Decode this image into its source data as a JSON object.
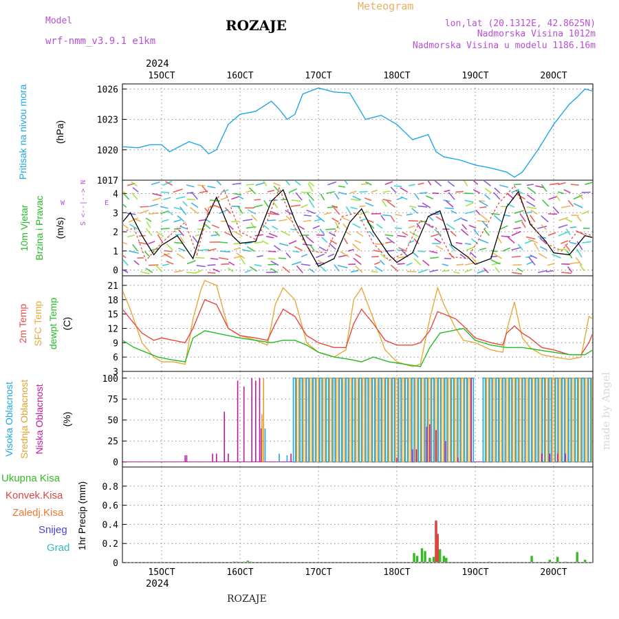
{
  "header": {
    "model_label": "Model",
    "model_name": "wrf-nmm_v3.9.1 e1km",
    "station_title": "ROZAJE",
    "meteogram_label": "Meteogram",
    "lonlat": "lon,lat (20.1312E, 42.8625N)",
    "elevation": "Nadmorska Visina 1012m",
    "model_elevation": "Nadmorska Visina u modelu 1186.16m",
    "footer_title": "ROZAJE",
    "watermark": "made by Angel"
  },
  "colors": {
    "pressure": "#1ea6e6",
    "temp2m": "#e8483c",
    "sfc": "#e8a838",
    "dewpt": "#22bb22",
    "high_cloud": "#1ea6e6",
    "mid_cloud": "#e0a030",
    "low_cloud": "#c0189c",
    "total_precip": "#33bb22",
    "conv_precip": "#dd4444",
    "header_purple": "#b84ed8",
    "header_orange": "#e8b060"
  },
  "time_axis": {
    "year": "2024",
    "start_day": 14.5,
    "end_day": 20.5,
    "ticks": [
      {
        "day": 15,
        "label": "15OCT"
      },
      {
        "day": 16,
        "label": "16OCT"
      },
      {
        "day": 17,
        "label": "17OCT"
      },
      {
        "day": 18,
        "label": "18OCT"
      },
      {
        "day": 19,
        "label": "19OCT"
      },
      {
        "day": 20,
        "label": "20OCT"
      }
    ]
  },
  "chart_data": [
    {
      "type": "line",
      "name": "pressure",
      "ylabel_lines": [
        {
          "text": "Pritisak na nivou mora",
          "color": "#1ea6e6"
        }
      ],
      "unit": "(hPa)",
      "ylim": [
        1017,
        1026.5
      ],
      "yticks": [
        1017,
        1020,
        1023,
        1026
      ],
      "grid": true,
      "series": [
        {
          "color": "#1ea6e6",
          "x": [
            14.5,
            14.7,
            14.85,
            15.0,
            15.1,
            15.2,
            15.35,
            15.5,
            15.6,
            15.7,
            15.85,
            16.0,
            16.2,
            16.4,
            16.5,
            16.6,
            16.7,
            16.8,
            17.0,
            17.2,
            17.4,
            17.6,
            17.8,
            18.0,
            18.2,
            18.4,
            18.5,
            18.6,
            18.8,
            19.0,
            19.2,
            19.4,
            19.5,
            19.6,
            19.8,
            20.0,
            20.2,
            20.3,
            20.4,
            20.5
          ],
          "y": [
            1020.3,
            1020.2,
            1020.5,
            1020.5,
            1019.8,
            1020.2,
            1020.8,
            1020.4,
            1019.6,
            1020.0,
            1022.5,
            1023.5,
            1023.8,
            1024.8,
            1024.0,
            1023.0,
            1023.5,
            1025.5,
            1026.1,
            1025.7,
            1025.6,
            1023.0,
            1023.4,
            1022.5,
            1021.0,
            1021.5,
            1019.8,
            1019.3,
            1019.0,
            1018.5,
            1018.2,
            1017.8,
            1017.3,
            1017.8,
            1020.0,
            1022.5,
            1024.5,
            1025.2,
            1026.0,
            1025.8
          ]
        }
      ]
    },
    {
      "type": "line",
      "name": "wind",
      "ylabel_lines": [
        {
          "text": "10m Vjetar",
          "color": "#22bb22"
        },
        {
          "text": "Brzina i Pravac",
          "color": "#22bb22"
        }
      ],
      "unit": "(m/s)",
      "compass_labels": [
        "W",
        "<--|-->",
        "E",
        "S",
        "N"
      ],
      "ylim": [
        -0.3,
        4.7
      ],
      "yticks": [
        0,
        1,
        2,
        3,
        4
      ],
      "grid": true,
      "series": [
        {
          "color": "#000000",
          "x": [
            14.5,
            14.6,
            14.75,
            14.9,
            15.0,
            15.2,
            15.4,
            15.55,
            15.7,
            15.9,
            16.0,
            16.2,
            16.4,
            16.55,
            16.7,
            16.85,
            17.0,
            17.2,
            17.4,
            17.55,
            17.7,
            17.9,
            18.0,
            18.2,
            18.4,
            18.55,
            18.7,
            18.9,
            19.0,
            19.2,
            19.4,
            19.55,
            19.7,
            19.9,
            20.0,
            20.2,
            20.4,
            20.5
          ],
          "y": [
            2.5,
            3.0,
            1.8,
            0.8,
            1.3,
            1.8,
            0.6,
            2.5,
            3.8,
            1.8,
            1.4,
            1.5,
            3.6,
            4.2,
            2.6,
            1.3,
            0.2,
            0.6,
            2.5,
            3.2,
            2.0,
            0.8,
            0.4,
            0.9,
            2.8,
            3.1,
            1.3,
            0.7,
            0.3,
            0.6,
            3.3,
            4.1,
            2.4,
            1.5,
            0.9,
            0.8,
            1.8,
            1.7
          ]
        },
        {
          "color": "#e8483c",
          "x": [
            14.5,
            14.65,
            14.8,
            14.95,
            15.1,
            15.3,
            15.45,
            15.6,
            15.8,
            16.0,
            16.2,
            16.35,
            16.5,
            16.7,
            16.9,
            17.1,
            17.3,
            17.5,
            17.7,
            17.9,
            18.1,
            18.3,
            18.5,
            18.7,
            18.9,
            19.1,
            19.3,
            19.5,
            19.7,
            19.9,
            20.1,
            20.3,
            20.5
          ],
          "y": [
            2.0,
            2.2,
            0.5,
            1.2,
            1.8,
            2.5,
            0.8,
            3.2,
            4.2,
            2.0,
            1.6,
            2.6,
            4.3,
            2.2,
            1.0,
            0.9,
            2.8,
            3.0,
            1.4,
            0.5,
            0.9,
            2.6,
            2.2,
            0.7,
            0.6,
            2.0,
            3.5,
            4.4,
            2.5,
            1.4,
            1.0,
            2.0,
            1.8
          ]
        }
      ]
    },
    {
      "type": "line",
      "name": "temperature",
      "ylabel_lines": [
        {
          "text": "2m Temp",
          "color": "#e8483c"
        },
        {
          "text": "SFC Temp",
          "color": "#e8a838"
        },
        {
          "text": "dewpt Temp",
          "color": "#22bb22"
        }
      ],
      "unit": "(C)",
      "ylim": [
        3,
        23
      ],
      "yticks": [
        3,
        6,
        9,
        12,
        15,
        18,
        21
      ],
      "grid": true,
      "series": [
        {
          "color": "#e8a838",
          "x": [
            14.5,
            14.6,
            14.75,
            14.9,
            15.0,
            15.15,
            15.3,
            15.4,
            15.5,
            15.55,
            15.7,
            15.85,
            16.0,
            16.2,
            16.35,
            16.45,
            16.55,
            16.7,
            16.85,
            17.0,
            17.2,
            17.35,
            17.45,
            17.55,
            17.7,
            17.85,
            18.0,
            18.2,
            18.3,
            18.42,
            18.52,
            18.6,
            18.75,
            18.85,
            19.0,
            19.2,
            19.35,
            19.4,
            19.5,
            19.6,
            19.7,
            19.85,
            20.0,
            20.2,
            20.35,
            20.45,
            20.5
          ],
          "y": [
            20.0,
            16.0,
            9.0,
            6.0,
            5.0,
            5.0,
            4.5,
            14.0,
            20.0,
            22.0,
            21.0,
            12.0,
            10.5,
            9.5,
            8.5,
            17.0,
            20.5,
            18.0,
            9.0,
            7.0,
            6.0,
            7.5,
            18.0,
            20.5,
            14.0,
            7.5,
            5.0,
            4.0,
            4.5,
            14.0,
            20.5,
            17.0,
            12.0,
            9.5,
            9.0,
            7.5,
            7.0,
            11.5,
            17.5,
            10.0,
            8.0,
            6.5,
            6.0,
            5.5,
            6.0,
            14.5,
            14.0
          ]
        },
        {
          "color": "#e8483c",
          "x": [
            14.5,
            14.6,
            14.75,
            14.9,
            15.0,
            15.15,
            15.3,
            15.4,
            15.5,
            15.55,
            15.7,
            15.85,
            16.0,
            16.2,
            16.35,
            16.45,
            16.55,
            16.7,
            16.85,
            17.0,
            17.2,
            17.35,
            17.45,
            17.55,
            17.7,
            17.85,
            18.0,
            18.2,
            18.3,
            18.42,
            18.52,
            18.6,
            18.75,
            18.85,
            19.0,
            19.2,
            19.35,
            19.4,
            19.5,
            19.6,
            19.7,
            19.85,
            20.0,
            20.2,
            20.35,
            20.45,
            20.5
          ],
          "y": [
            16.0,
            14.0,
            11.0,
            9.5,
            10.0,
            9.5,
            9.0,
            12.0,
            16.0,
            18.0,
            17.0,
            12.0,
            10.5,
            10.0,
            9.5,
            13.0,
            16.0,
            14.5,
            10.5,
            9.0,
            8.0,
            8.0,
            13.0,
            16.0,
            13.0,
            9.5,
            8.5,
            8.5,
            9.0,
            11.5,
            15.5,
            15.0,
            14.0,
            12.5,
            10.0,
            9.0,
            8.5,
            11.0,
            12.5,
            11.0,
            10.0,
            8.0,
            7.5,
            6.5,
            6.5,
            9.0,
            11.0
          ]
        },
        {
          "color": "#22bb22",
          "x": [
            14.5,
            14.65,
            14.8,
            14.95,
            15.1,
            15.3,
            15.4,
            15.55,
            15.7,
            15.85,
            16.0,
            16.2,
            16.4,
            16.55,
            16.7,
            16.85,
            17.0,
            17.2,
            17.4,
            17.55,
            17.7,
            17.9,
            18.1,
            18.3,
            18.42,
            18.55,
            18.7,
            18.85,
            19.0,
            19.2,
            19.4,
            19.6,
            19.8,
            20.0,
            20.2,
            20.4,
            20.5
          ],
          "y": [
            9.5,
            8.0,
            7.0,
            6.0,
            5.5,
            5.0,
            10.0,
            11.5,
            11.0,
            10.5,
            10.0,
            9.5,
            9.0,
            9.5,
            9.5,
            8.5,
            7.0,
            6.0,
            5.5,
            5.0,
            6.0,
            5.0,
            4.5,
            4.0,
            8.0,
            11.0,
            11.5,
            12.0,
            9.5,
            8.5,
            8.0,
            8.0,
            7.5,
            7.0,
            6.5,
            6.5,
            7.5
          ]
        }
      ]
    },
    {
      "type": "bar",
      "name": "cloud_cover",
      "ylabel_lines": [
        {
          "text": "Visoka Oblacnost",
          "color": "#1ea6e6"
        },
        {
          "text": "Srednja Oblacnost",
          "color": "#e0a030"
        },
        {
          "text": "Niska Oblacnost",
          "color": "#c0189c"
        }
      ],
      "unit": "(%)",
      "ylim": [
        0,
        100
      ],
      "yticks": [
        0,
        25,
        50,
        75,
        100
      ],
      "grid": true,
      "series": [
        {
          "name": "low",
          "color": "#c0189c",
          "x": [
            15.3,
            15.32,
            15.65,
            15.7,
            15.8,
            15.85,
            15.97,
            16.05,
            16.15,
            16.2,
            16.25,
            16.27,
            16.65,
            18.0,
            18.2,
            18.25,
            18.38,
            18.42,
            18.5,
            18.62,
            18.78,
            18.95,
            19.85,
            19.95,
            20.05,
            20.15
          ],
          "y": [
            8,
            8,
            10,
            10,
            60,
            10,
            97,
            90,
            100,
            97,
            100,
            40,
            10,
            5,
            15,
            15,
            42,
            45,
            38,
            25,
            5,
            100,
            10,
            10,
            10,
            10
          ]
        },
        {
          "name": "mid",
          "color": "#e0a030",
          "x": [
            16.28,
            16.3
          ],
          "y": [
            57,
            100
          ]
        },
        {
          "name": "high",
          "color": "#1ea6e6",
          "x": [
            16.32,
            16.5,
            16.6
          ],
          "y": [
            40,
            10,
            8
          ]
        }
      ],
      "dense_segments": [
        {
          "x_start": 16.68,
          "x_end": 18.98,
          "high": 100,
          "mid": 100
        },
        {
          "x_start": 19.1,
          "x_end": 20.5,
          "high": 100,
          "mid": 100
        }
      ]
    },
    {
      "type": "bar",
      "name": "precipitation",
      "ylabel_lines": [
        {
          "text": "1hr Precip (mm)",
          "color": "#000000"
        }
      ],
      "legend": [
        {
          "text": "Ukupna Kisa",
          "color": "#33bb22"
        },
        {
          "text": "Konvek.Kisa",
          "color": "#dd4444"
        },
        {
          "text": "Zaledj.Kisa",
          "color": "#e87a30"
        },
        {
          "text": "Snijeg",
          "color": "#4444dd"
        },
        {
          "text": "Grad",
          "color": "#33bbbb"
        }
      ],
      "ylim": [
        0,
        1.0
      ],
      "yticks": [
        0,
        0.2,
        0.4,
        0.6,
        0.8
      ],
      "grid": true,
      "series": [
        {
          "name": "total",
          "color": "#33bb22",
          "x": [
            15.92,
            15.96,
            16.05,
            16.1,
            16.14,
            18.22,
            18.26,
            18.32,
            18.36,
            18.42,
            18.47,
            18.5,
            18.52,
            18.55,
            18.6,
            18.63,
            19.18,
            19.72,
            19.95,
            20.05,
            20.15,
            20.3,
            20.4
          ],
          "y": [
            0.01,
            0.01,
            0.01,
            0.02,
            0.01,
            0.1,
            0.07,
            0.15,
            0.12,
            0.05,
            0.06,
            0.42,
            0.3,
            0.14,
            0.07,
            0.05,
            0.01,
            0.07,
            0.03,
            0.06,
            0.01,
            0.11,
            0.03
          ]
        },
        {
          "name": "convective",
          "color": "#dd4444",
          "x": [
            18.5,
            18.52
          ],
          "y": [
            0.44,
            0.3
          ]
        }
      ]
    }
  ]
}
